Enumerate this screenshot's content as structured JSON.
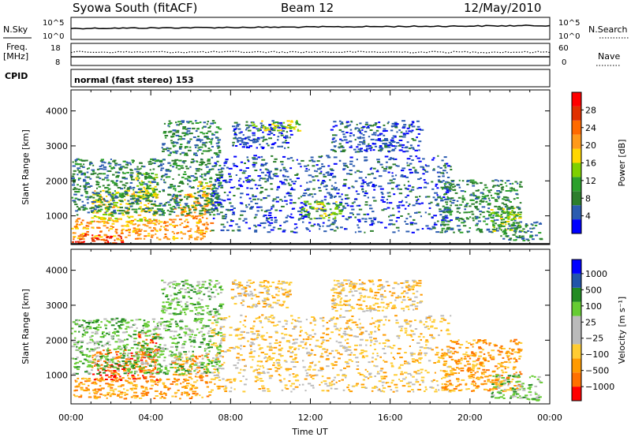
{
  "header": {
    "station": "Syowa South (fitACF)",
    "beam": "Beam 12",
    "date": "12/May/2010"
  },
  "status_panels": {
    "nsky": {
      "label": "N.Sky",
      "left_ticks": [
        "10^5",
        "10^0"
      ],
      "right_ticks": [
        "10^5",
        "10^0"
      ],
      "right_label": "N.Search"
    },
    "freq": {
      "label_line1": "Freq.",
      "label_line2": "[MHz]",
      "left_ticks": [
        "18",
        "8"
      ],
      "right_ticks": [
        "60",
        "0"
      ],
      "right_label": "Nave"
    },
    "cpid": {
      "label": "CPID",
      "text": "normal (fast stereo) 153"
    }
  },
  "colors": {
    "power": [
      "#0000ff",
      "#2b5cb0",
      "#2d7f2d",
      "#2ca02c",
      "#7fd000",
      "#ffd700",
      "#ff9a1a",
      "#ff6a00",
      "#e03000",
      "#ff0000"
    ],
    "velocity": [
      "#ff0000",
      "#ff7000",
      "#ff9a00",
      "#ffcc33",
      "#bbbbbb",
      "#bbbbbb",
      "#66cc33",
      "#228b22",
      "#2255aa",
      "#0000ff"
    ]
  },
  "chart_data": [
    {
      "type": "heatmap",
      "name": "power",
      "x_ticks": [
        "00:00",
        "04:00",
        "08:00",
        "12:00",
        "16:00",
        "20:00",
        "00:00"
      ],
      "xlim_hours": [
        0,
        24
      ],
      "ylabel": "Slant Range [km]",
      "ylim": [
        180,
        4600
      ],
      "y_ticks": [
        1000,
        2000,
        3000,
        4000
      ],
      "colorbar": {
        "label": "Power [dB]",
        "ticks": [
          4,
          8,
          12,
          16,
          20,
          24,
          28
        ],
        "range": [
          0,
          32
        ]
      },
      "regions": [
        {
          "t0": 0.0,
          "t1": 7.0,
          "r0": 300,
          "r1": 900,
          "level": 6
        },
        {
          "t0": 0.0,
          "t1": 2.5,
          "r0": 180,
          "r1": 450,
          "level": 8
        },
        {
          "t0": 1.0,
          "t1": 4.3,
          "r0": 800,
          "r1": 1700,
          "level": 5
        },
        {
          "t0": 3.2,
          "t1": 4.3,
          "r0": 1500,
          "r1": 2200,
          "level": 4
        },
        {
          "t0": 5.0,
          "t1": 6.8,
          "r0": 900,
          "r1": 1600,
          "level": 6
        },
        {
          "t0": 6.3,
          "t1": 7.0,
          "r0": 1300,
          "r1": 2000,
          "level": 5
        },
        {
          "t0": 0.0,
          "t1": 7.5,
          "r0": 1000,
          "r1": 2600,
          "level": 2
        },
        {
          "t0": 4.5,
          "t1": 7.5,
          "r0": 2700,
          "r1": 3700,
          "level": 2
        },
        {
          "t0": 8.0,
          "t1": 11.0,
          "r0": 2900,
          "r1": 3700,
          "level": 1
        },
        {
          "t0": 9.0,
          "t1": 11.5,
          "r0": 3400,
          "r1": 3700,
          "level": 4
        },
        {
          "t0": 7.0,
          "t1": 19.0,
          "r0": 500,
          "r1": 2700,
          "level": 1
        },
        {
          "t0": 11.5,
          "t1": 13.5,
          "r0": 900,
          "r1": 1400,
          "level": 4
        },
        {
          "t0": 13.0,
          "t1": 17.5,
          "r0": 2800,
          "r1": 3700,
          "level": 1
        },
        {
          "t0": 18.5,
          "t1": 22.5,
          "r0": 500,
          "r1": 2000,
          "level": 2
        },
        {
          "t0": 21.0,
          "t1": 22.5,
          "r0": 500,
          "r1": 1200,
          "level": 4
        },
        {
          "t0": 21.5,
          "t1": 23.5,
          "r0": 250,
          "r1": 800,
          "level": 2
        }
      ]
    },
    {
      "type": "heatmap",
      "name": "velocity",
      "x_ticks": [
        "00:00",
        "04:00",
        "08:00",
        "12:00",
        "16:00",
        "20:00",
        "00:00"
      ],
      "xlim_hours": [
        0,
        24
      ],
      "xlabel": "Time UT",
      "ylabel": "Slant Range [km]",
      "ylim": [
        180,
        4600
      ],
      "y_ticks": [
        1000,
        2000,
        3000,
        4000
      ],
      "colorbar": {
        "label": "Velocity [m s⁻¹]",
        "ticks": [
          "1000",
          "500",
          "100",
          "25",
          "−25",
          "−100",
          "−500",
          "−1000"
        ]
      },
      "regions": [
        {
          "t0": 0.0,
          "t1": 7.0,
          "r0": 300,
          "r1": 900,
          "level": 2
        },
        {
          "t0": 1.0,
          "t1": 4.3,
          "r0": 800,
          "r1": 1700,
          "level": 1
        },
        {
          "t0": 3.2,
          "t1": 4.3,
          "r0": 1500,
          "r1": 2200,
          "level": 1
        },
        {
          "t0": 5.0,
          "t1": 6.8,
          "r0": 900,
          "r1": 1600,
          "level": 2
        },
        {
          "t0": 0.0,
          "t1": 7.5,
          "r0": 1000,
          "r1": 2600,
          "level": 6
        },
        {
          "t0": 4.5,
          "t1": 7.5,
          "r0": 2700,
          "r1": 3700,
          "level": 6
        },
        {
          "t0": 8.0,
          "t1": 11.0,
          "r0": 2900,
          "r1": 3700,
          "level": 3
        },
        {
          "t0": 7.0,
          "t1": 19.0,
          "r0": 500,
          "r1": 2700,
          "level": 3
        },
        {
          "t0": 13.0,
          "t1": 17.5,
          "r0": 2800,
          "r1": 3700,
          "level": 3
        },
        {
          "t0": 18.5,
          "t1": 22.5,
          "r0": 500,
          "r1": 2000,
          "level": 2
        },
        {
          "t0": 21.0,
          "t1": 23.5,
          "r0": 250,
          "r1": 1000,
          "level": 6
        }
      ]
    }
  ]
}
